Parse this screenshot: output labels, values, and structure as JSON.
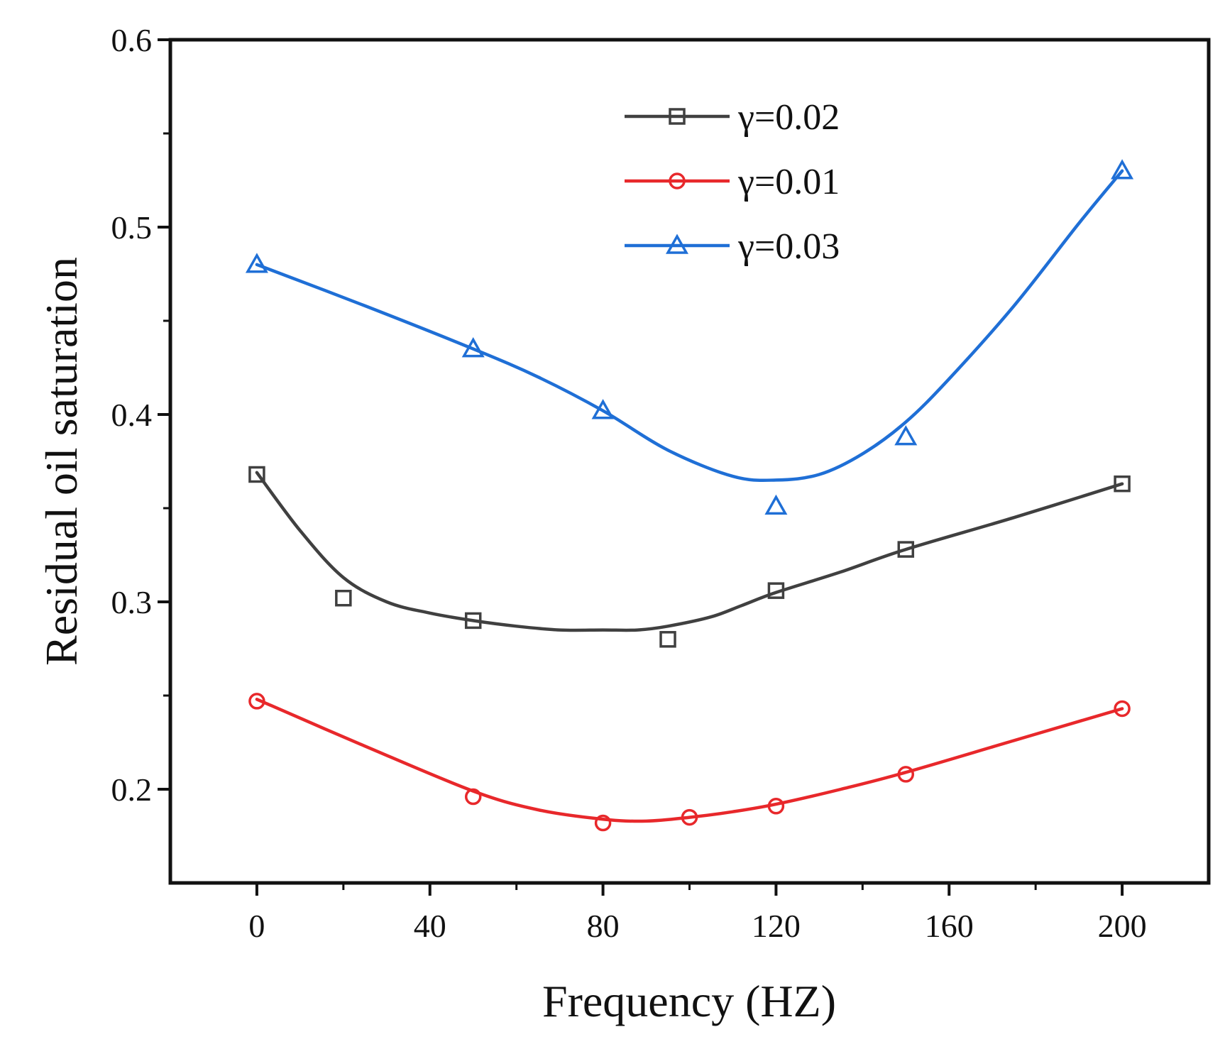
{
  "chart_data": {
    "type": "line",
    "title": "",
    "xlabel": "Frequency (HZ)",
    "ylabel": "Residual oil saturation",
    "xlim": [
      -20,
      220
    ],
    "ylim": [
      0.15,
      0.6
    ],
    "xticks": [
      0,
      40,
      80,
      120,
      160,
      200
    ],
    "xtick_labels": [
      "0",
      "40",
      "80",
      "120",
      "160",
      "200"
    ],
    "xminor": [
      20,
      60,
      100,
      140,
      180
    ],
    "yticks": [
      0.2,
      0.3,
      0.4,
      0.5,
      0.6
    ],
    "ytick_labels": [
      "0.2",
      "0.3",
      "0.4",
      "0.5",
      "0.6"
    ],
    "yminor": [
      0.25,
      0.35,
      0.45,
      0.55
    ],
    "grid": false,
    "legend_position": "top-center",
    "series": [
      {
        "name": "γ=0.02",
        "color": "#404040",
        "marker": "square",
        "x": [
          0,
          20,
          50,
          95,
          120,
          150,
          200
        ],
        "y": [
          0.368,
          0.302,
          0.29,
          0.28,
          0.306,
          0.328,
          0.363
        ],
        "fit_x": [
          0,
          10,
          20,
          30,
          40,
          50,
          60,
          70,
          80,
          88,
          95,
          105,
          112,
          120,
          135,
          150,
          175,
          200
        ],
        "fit_y": [
          0.369,
          0.338,
          0.313,
          0.3,
          0.294,
          0.29,
          0.287,
          0.285,
          0.285,
          0.285,
          0.287,
          0.292,
          0.298,
          0.305,
          0.316,
          0.328,
          0.345,
          0.363
        ]
      },
      {
        "name": "γ=0.01",
        "color": "#e8282b",
        "marker": "circle",
        "x": [
          0,
          50,
          80,
          100,
          120,
          150,
          200
        ],
        "y": [
          0.247,
          0.196,
          0.182,
          0.185,
          0.191,
          0.208,
          0.243
        ],
        "fit_x": [
          0,
          25,
          50,
          65,
          80,
          90,
          100,
          110,
          120,
          135,
          150,
          175,
          200
        ],
        "fit_y": [
          0.248,
          0.223,
          0.199,
          0.189,
          0.184,
          0.183,
          0.185,
          0.188,
          0.192,
          0.2,
          0.209,
          0.226,
          0.243
        ]
      },
      {
        "name": "γ=0.03",
        "color": "#1f6fd6",
        "marker": "triangle",
        "x": [
          0,
          50,
          80,
          120,
          150,
          200
        ],
        "y": [
          0.48,
          0.435,
          0.402,
          0.351,
          0.388,
          0.53
        ],
        "fit_x": [
          0,
          25,
          50,
          65,
          80,
          95,
          110,
          120,
          130,
          140,
          150,
          160,
          175,
          190,
          200
        ],
        "fit_y": [
          0.48,
          0.458,
          0.435,
          0.42,
          0.402,
          0.381,
          0.367,
          0.365,
          0.368,
          0.379,
          0.396,
          0.419,
          0.458,
          0.502,
          0.53
        ]
      }
    ]
  },
  "legend": {
    "order": [
      0,
      1,
      2
    ]
  }
}
